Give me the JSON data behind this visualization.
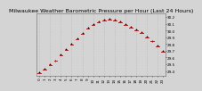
{
  "title": "Milwaukee Weather Barometric Pressure per Hour (Last 24 Hours)",
  "background_color": "#d4d4d4",
  "plot_bg_color": "#d4d4d4",
  "grid_color": "#aaaaaa",
  "dot_color": "#000000",
  "red_color": "#ff0000",
  "hours": [
    0,
    1,
    2,
    3,
    4,
    5,
    6,
    7,
    8,
    9,
    10,
    11,
    12,
    13,
    14,
    15,
    16,
    17,
    18,
    19,
    20,
    21,
    22,
    23
  ],
  "pressure": [
    29.38,
    29.44,
    29.5,
    29.56,
    29.64,
    29.72,
    29.8,
    29.88,
    29.96,
    30.04,
    30.09,
    30.13,
    30.16,
    30.17,
    30.16,
    30.13,
    30.1,
    30.06,
    30.02,
    29.97,
    29.91,
    29.85,
    29.78,
    29.7
  ],
  "ylim_min": 29.33,
  "ylim_max": 30.25,
  "ytick_values": [
    29.4,
    29.5,
    29.6,
    29.7,
    29.8,
    29.9,
    30.0,
    30.1,
    30.2
  ],
  "ytick_labels": [
    "29.4",
    "29.5",
    "29.6",
    "29.7",
    "29.8",
    "29.9",
    "30.0",
    "30.1",
    "30.2"
  ],
  "xtick_step": 1,
  "title_fontsize": 4.5,
  "tick_fontsize": 3.0,
  "marker_size": 1.8,
  "vgrid_hours": [
    0,
    2,
    4,
    6,
    8,
    10,
    12,
    14,
    16,
    18,
    20,
    22
  ]
}
